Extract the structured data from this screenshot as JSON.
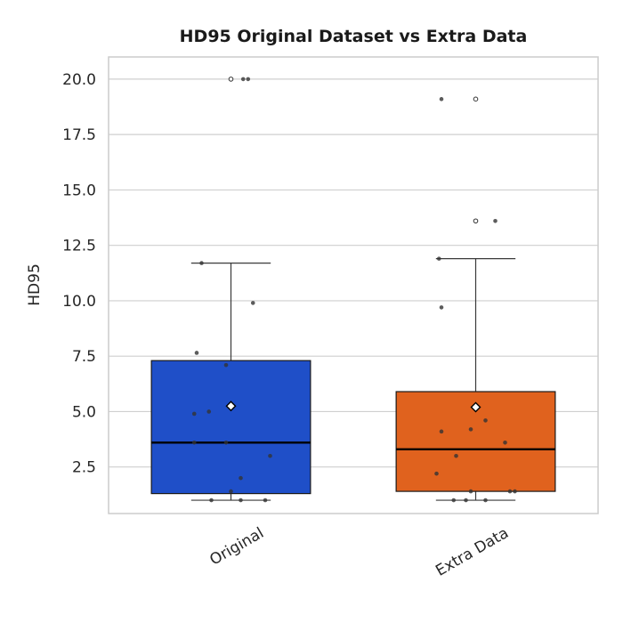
{
  "chart_data": {
    "type": "box",
    "title": "HD95 Original Dataset vs Extra Data",
    "xlabel": "",
    "ylabel": "HD95",
    "ylim": [
      0.4,
      21.0
    ],
    "yticks": [
      2.5,
      5.0,
      7.5,
      10.0,
      12.5,
      15.0,
      17.5,
      20.0
    ],
    "ytick_labels": [
      "2.5",
      "5.0",
      "7.5",
      "10.0",
      "12.5",
      "15.0",
      "17.5",
      "20.0"
    ],
    "grid": "horizontal",
    "categories": [
      "Original",
      "Extra Data"
    ],
    "colors": {
      "Original": "#1f4fc8",
      "Extra Data": "#e0621e",
      "median_line": "#000000",
      "whisker": "#3a3a3a",
      "point": "#333333",
      "mean_marker_fill": "#ffffff"
    },
    "boxes": [
      {
        "name": "Original",
        "q1": 1.3,
        "median": 3.6,
        "q3": 7.3,
        "whisker_low": 1.0,
        "whisker_high": 11.7,
        "mean": 5.25,
        "outliers": [
          20.0
        ],
        "points": [
          {
            "x": 0.05,
            "y": 20.0
          },
          {
            "x": 0.07,
            "y": 20.0
          },
          {
            "x": -0.12,
            "y": 11.7
          },
          {
            "x": 0.09,
            "y": 9.9
          },
          {
            "x": -0.14,
            "y": 7.65
          },
          {
            "x": -0.02,
            "y": 7.1
          },
          {
            "x": -0.15,
            "y": 4.9
          },
          {
            "x": -0.09,
            "y": 5.0
          },
          {
            "x": -0.15,
            "y": 3.6
          },
          {
            "x": -0.02,
            "y": 3.6
          },
          {
            "x": 0.16,
            "y": 3.0
          },
          {
            "x": 0.04,
            "y": 2.0
          },
          {
            "x": 0.0,
            "y": 1.4
          },
          {
            "x": -0.08,
            "y": 1.0
          },
          {
            "x": 0.04,
            "y": 1.0
          },
          {
            "x": 0.14,
            "y": 1.0
          }
        ]
      },
      {
        "name": "Extra Data",
        "q1": 1.4,
        "median": 3.3,
        "q3": 5.9,
        "whisker_low": 1.0,
        "whisker_high": 11.9,
        "mean": 5.2,
        "outliers": [
          19.1,
          13.6
        ],
        "points": [
          {
            "x": -0.14,
            "y": 19.1
          },
          {
            "x": 0.0,
            "y": 19.1
          },
          {
            "x": 0.0,
            "y": 13.6
          },
          {
            "x": 0.08,
            "y": 13.6
          },
          {
            "x": -0.15,
            "y": 11.9
          },
          {
            "x": -0.14,
            "y": 9.7
          },
          {
            "x": 0.04,
            "y": 4.6
          },
          {
            "x": -0.14,
            "y": 4.1
          },
          {
            "x": -0.02,
            "y": 4.2
          },
          {
            "x": 0.12,
            "y": 3.6
          },
          {
            "x": -0.08,
            "y": 3.0
          },
          {
            "x": -0.16,
            "y": 2.2
          },
          {
            "x": -0.02,
            "y": 1.4
          },
          {
            "x": 0.14,
            "y": 1.4
          },
          {
            "x": 0.16,
            "y": 1.4
          },
          {
            "x": -0.09,
            "y": 1.0
          },
          {
            "x": -0.04,
            "y": 1.0
          },
          {
            "x": 0.04,
            "y": 1.0
          }
        ]
      }
    ]
  }
}
